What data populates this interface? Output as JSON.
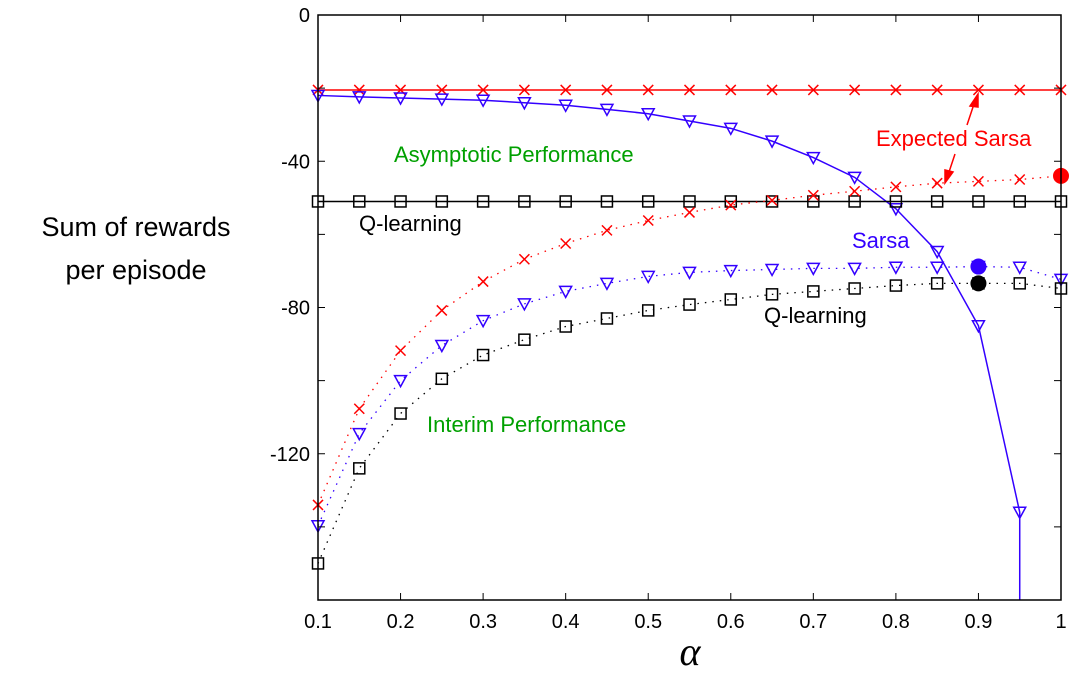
{
  "chart_data": {
    "type": "line",
    "xlabel": "α",
    "ylabel_lines": [
      "Sum of rewards",
      "per episode"
    ],
    "xlim": [
      0.1,
      1.0
    ],
    "ylim": [
      -160,
      0
    ],
    "xticks": [
      0.1,
      0.2,
      0.3,
      0.4,
      0.5,
      0.6,
      0.7,
      0.8,
      0.9,
      1
    ],
    "xtick_labels": [
      "0.1",
      "0.2",
      "0.3",
      "0.4",
      "0.5",
      "0.6",
      "0.7",
      "0.8",
      "0.9",
      "1"
    ],
    "yticks": [
      0,
      -40,
      -80,
      -120
    ],
    "ytick_labels": [
      "0",
      "-40",
      "-80",
      "-120"
    ],
    "yminor_step": 20,
    "grid": false,
    "x": [
      0.1,
      0.15,
      0.2,
      0.25,
      0.3,
      0.35,
      0.4,
      0.45,
      0.5,
      0.55,
      0.6,
      0.65,
      0.7,
      0.75,
      0.8,
      0.85,
      0.9,
      0.95,
      1.0
    ],
    "series": [
      {
        "group": "asymptotic",
        "algo": "Expected Sarsa",
        "color": "#ff0000",
        "marker": "x",
        "style": "solid",
        "values": [
          -20.5,
          -20.5,
          -20.5,
          -20.5,
          -20.5,
          -20.5,
          -20.5,
          -20.5,
          -20.5,
          -20.5,
          -20.5,
          -20.5,
          -20.5,
          -20.5,
          -20.5,
          -20.5,
          -20.5,
          -20.5,
          -20.5
        ]
      },
      {
        "group": "asymptotic",
        "algo": "Sarsa",
        "color": "#3300ff",
        "marker": "triangle-down",
        "style": "solid",
        "values": [
          -22,
          -22.4,
          -22.7,
          -23,
          -23.3,
          -24,
          -24.7,
          -25.8,
          -27,
          -29,
          -31,
          -34.5,
          -39,
          -44.4,
          -53,
          -64.7,
          -85,
          -136,
          null
        ],
        "continues_below_axis": true
      },
      {
        "group": "asymptotic",
        "algo": "Q-learning",
        "color": "#000000",
        "marker": "square",
        "style": "solid",
        "values": [
          -51,
          -51,
          -51,
          -51,
          -51,
          -51,
          -51,
          -51,
          -51,
          -51,
          -51,
          -51,
          -51,
          -51,
          -51,
          -51,
          -51,
          -51,
          -51
        ]
      },
      {
        "group": "interim",
        "algo": "Expected Sarsa",
        "color": "#ff0000",
        "marker": "x",
        "style": "dotted",
        "values": [
          -134,
          -107.7,
          -91.8,
          -80.8,
          -72.9,
          -66.8,
          -62.5,
          -58.9,
          -56.2,
          -54,
          -52,
          -50.7,
          -49.3,
          -48.2,
          -47,
          -46,
          -45.5,
          -45,
          -44
        ],
        "best": {
          "x": 1.0,
          "y": -44
        }
      },
      {
        "group": "interim",
        "algo": "Sarsa",
        "color": "#3300ff",
        "marker": "triangle-down",
        "style": "dotted",
        "values": [
          -139.7,
          -114.5,
          -100,
          -90.4,
          -83.6,
          -79,
          -75.6,
          -73.4,
          -71.5,
          -70.4,
          -69.9,
          -69.6,
          -69.3,
          -69.3,
          -69,
          -69,
          -68.8,
          -69,
          -72.3
        ],
        "best": {
          "x": 0.9,
          "y": -68.8
        }
      },
      {
        "group": "interim",
        "algo": "Q-learning",
        "color": "#000000",
        "marker": "square",
        "style": "dotted",
        "values": [
          -150,
          -124,
          -109,
          -99.5,
          -93,
          -88.8,
          -85.2,
          -83,
          -80.8,
          -79.2,
          -77.8,
          -76.4,
          -75.6,
          -74.8,
          -74,
          -73.4,
          -73.4,
          -73.4,
          -74.8
        ],
        "best": {
          "x": 0.9,
          "y": -73.4
        }
      }
    ],
    "annotations": {
      "asymptotic": {
        "text": "Asymptotic Performance",
        "color": "#00a000"
      },
      "interim": {
        "text": "Interim Performance",
        "color": "#00a000"
      },
      "expected_sarsa": {
        "text": "Expected Sarsa",
        "color": "#ff0000"
      },
      "sarsa": {
        "text": "Sarsa",
        "color": "#3300ff"
      },
      "qlearning_asym": {
        "text": "Q-learning",
        "color": "#000000"
      },
      "qlearning_interim": {
        "text": "Q-learning",
        "color": "#000000"
      }
    }
  }
}
